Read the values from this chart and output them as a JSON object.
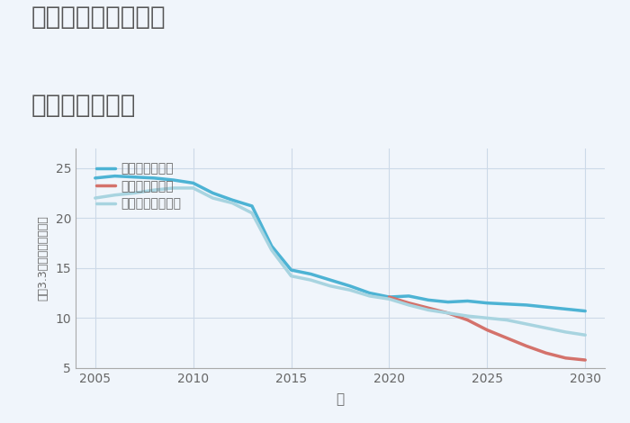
{
  "title_line1": "三重県伊賀市白樫の",
  "title_line2": "土地の価格推移",
  "xlabel": "年",
  "ylabel": "坪（3.3㎡）単価（万円）",
  "xlim": [
    2004,
    2031
  ],
  "ylim": [
    5,
    27
  ],
  "yticks": [
    5,
    10,
    15,
    20,
    25
  ],
  "xticks": [
    2005,
    2010,
    2015,
    2020,
    2025,
    2030
  ],
  "background_color": "#f0f5fb",
  "plot_bg_color": "#f0f5fb",
  "good_scenario": {
    "label": "グッドシナリオ",
    "color": "#4db3d4",
    "linewidth": 2.5,
    "x": [
      2005,
      2006,
      2007,
      2008,
      2009,
      2010,
      2011,
      2012,
      2013,
      2014,
      2015,
      2016,
      2017,
      2018,
      2019,
      2020,
      2021,
      2022,
      2023,
      2024,
      2025,
      2026,
      2027,
      2028,
      2029,
      2030
    ],
    "y": [
      24.0,
      24.2,
      24.1,
      24.0,
      23.8,
      23.5,
      22.5,
      21.8,
      21.2,
      17.2,
      14.8,
      14.4,
      13.8,
      13.2,
      12.5,
      12.1,
      12.2,
      11.8,
      11.6,
      11.7,
      11.5,
      11.4,
      11.3,
      11.1,
      10.9,
      10.7
    ]
  },
  "bad_scenario": {
    "label": "バッドシナリオ",
    "color": "#d4726b",
    "linewidth": 2.5,
    "x": [
      2020,
      2021,
      2022,
      2023,
      2024,
      2025,
      2026,
      2027,
      2028,
      2029,
      2030
    ],
    "y": [
      12.1,
      11.5,
      11.0,
      10.5,
      9.8,
      8.8,
      8.0,
      7.2,
      6.5,
      6.0,
      5.8
    ]
  },
  "normal_scenario": {
    "label": "ノーマルシナリオ",
    "color": "#a8d4e0",
    "linewidth": 2.5,
    "x": [
      2005,
      2006,
      2007,
      2008,
      2009,
      2010,
      2011,
      2012,
      2013,
      2014,
      2015,
      2016,
      2017,
      2018,
      2019,
      2020,
      2021,
      2022,
      2023,
      2024,
      2025,
      2026,
      2027,
      2028,
      2029,
      2030
    ],
    "y": [
      22.0,
      22.3,
      22.5,
      22.8,
      23.0,
      23.0,
      22.0,
      21.5,
      20.5,
      16.8,
      14.2,
      13.8,
      13.2,
      12.8,
      12.2,
      11.9,
      11.3,
      10.8,
      10.5,
      10.2,
      10.0,
      9.8,
      9.4,
      9.0,
      8.6,
      8.3
    ]
  },
  "title_color": "#555555",
  "title_fontsize": 20,
  "axis_color": "#aaaaaa",
  "grid_color": "#ccd9e8",
  "tick_color": "#666666",
  "tick_fontsize": 10,
  "legend_fontsize": 10
}
